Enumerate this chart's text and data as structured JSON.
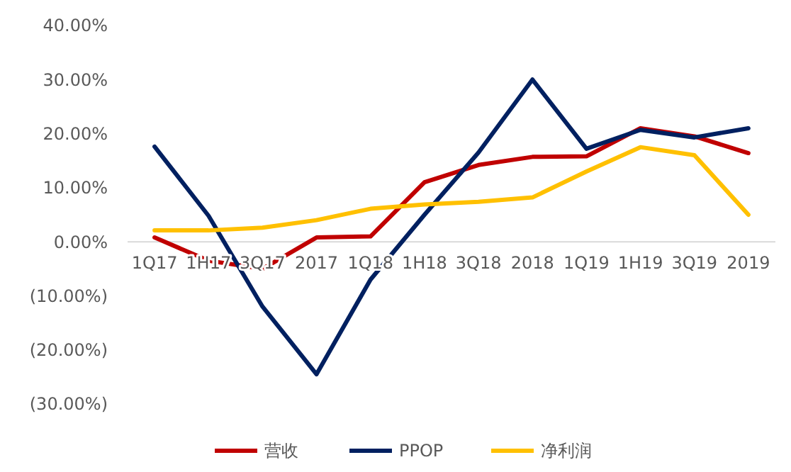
{
  "chart_data": {
    "type": "line",
    "categories": [
      "1Q17",
      "1H17",
      "3Q17",
      "2017",
      "1Q18",
      "1H18",
      "3Q18",
      "2018",
      "1Q19",
      "1H19",
      "3Q19",
      "2019"
    ],
    "series": [
      {
        "name": "营收",
        "color": "#c00000",
        "values": [
          0.8,
          -3.5,
          -5,
          0.8,
          1,
          11,
          14.2,
          15.7,
          15.8,
          21,
          19.5,
          16.4
        ]
      },
      {
        "name": "PPOP",
        "color": "#002060",
        "values": [
          17.6,
          4.8,
          -12,
          -24.5,
          -7,
          5,
          16.5,
          30,
          17.2,
          20.7,
          19.3,
          21
        ]
      },
      {
        "name": "净利润",
        "color": "#ffc000",
        "values": [
          2.1,
          2.1,
          2.6,
          4,
          6.1,
          6.9,
          7.4,
          8.2,
          13,
          17.5,
          16,
          5
        ]
      }
    ],
    "ylim": [
      -30,
      40
    ],
    "yticks": [
      {
        "value": -30,
        "label": "(30.00%)"
      },
      {
        "value": -20,
        "label": "(20.00%)"
      },
      {
        "value": -10,
        "label": "(10.00%)"
      },
      {
        "value": 0,
        "label": "0.00%"
      },
      {
        "value": 10,
        "label": "10.00%"
      },
      {
        "value": 20,
        "label": "20.00%"
      },
      {
        "value": 30,
        "label": "30.00%"
      },
      {
        "value": 40,
        "label": "40.00%"
      }
    ],
    "legend": "bottom",
    "marker": "none",
    "line_style": "solid"
  }
}
